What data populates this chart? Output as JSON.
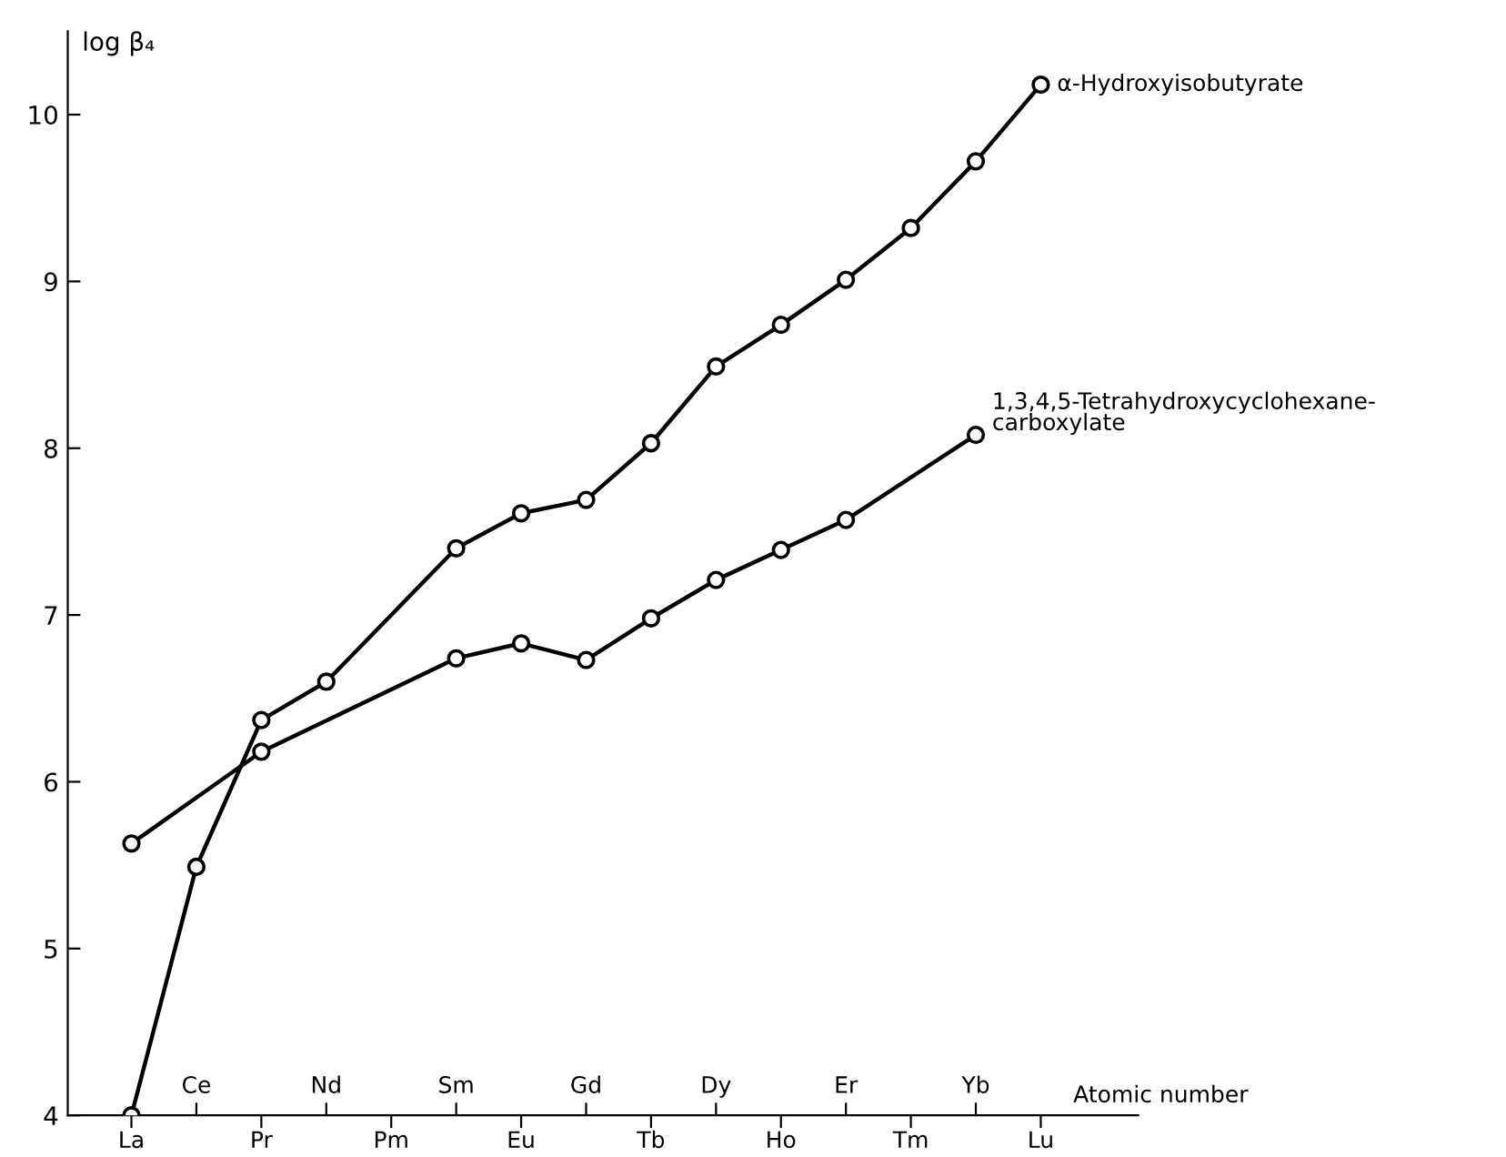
{
  "chart_data": {
    "type": "line",
    "ylabel": "log β₄",
    "xlabel": "Atomic number",
    "categories": [
      "La",
      "Ce",
      "Pr",
      "Nd",
      "Pm",
      "Sm",
      "Eu",
      "Gd",
      "Tb",
      "Dy",
      "Ho",
      "Er",
      "Tm",
      "Yb",
      "Lu"
    ],
    "series": [
      {
        "name": "α-Hydroxyisobutyrate",
        "color": "#000000",
        "values": [
          4.0,
          5.49,
          6.37,
          6.6,
          null,
          7.4,
          7.61,
          7.69,
          8.03,
          8.49,
          8.74,
          9.01,
          9.32,
          9.72,
          10.18
        ]
      },
      {
        "name": "1,3,4,5-Tetrahydroxycyclohexane-\ncarboxylate",
        "color": "#000000",
        "values": [
          5.63,
          null,
          6.18,
          null,
          null,
          6.74,
          6.83,
          6.73,
          6.98,
          7.21,
          7.39,
          7.57,
          null,
          8.08,
          null
        ]
      }
    ],
    "ylim": [
      4,
      10.5
    ],
    "yticks": [
      4,
      5,
      6,
      7,
      8,
      9,
      10
    ],
    "marker": "circle",
    "line_style": "solid",
    "grid": false,
    "legend": false
  }
}
